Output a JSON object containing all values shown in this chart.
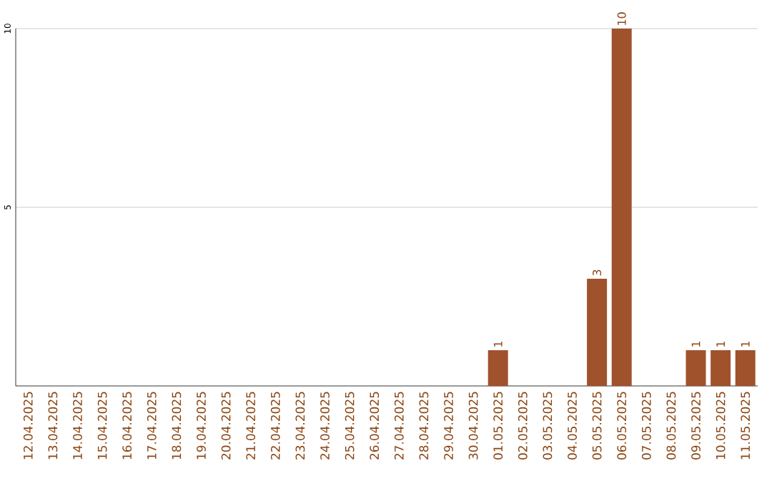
{
  "chart_data": {
    "type": "bar",
    "categories": [
      "12.04.2025",
      "13.04.2025",
      "14.04.2025",
      "15.04.2025",
      "16.04.2025",
      "17.04.2025",
      "18.04.2025",
      "19.04.2025",
      "20.04.2025",
      "21.04.2025",
      "22.04.2025",
      "23.04.2025",
      "24.04.2025",
      "25.04.2025",
      "26.04.2025",
      "27.04.2025",
      "28.04.2025",
      "29.04.2025",
      "30.04.2025",
      "01.05.2025",
      "02.05.2025",
      "03.05.2025",
      "04.05.2025",
      "05.05.2025",
      "06.05.2025",
      "07.05.2025",
      "08.05.2025",
      "09.05.2025",
      "10.05.2025",
      "11.05.2025"
    ],
    "values": [
      0,
      0,
      0,
      0,
      0,
      0,
      0,
      0,
      0,
      0,
      0,
      0,
      0,
      0,
      0,
      0,
      0,
      0,
      0,
      1,
      0,
      0,
      0,
      3,
      10,
      0,
      0,
      1,
      1,
      1
    ],
    "value_labels": [
      null,
      null,
      null,
      null,
      null,
      null,
      null,
      null,
      null,
      null,
      null,
      null,
      null,
      null,
      null,
      null,
      null,
      null,
      null,
      "1",
      null,
      null,
      null,
      "3",
      "10",
      null,
      null,
      "1",
      "1",
      "1"
    ],
    "color": "#a0522d",
    "ylim": [
      0,
      10
    ],
    "yticks": [
      5,
      10
    ],
    "grid": "y"
  }
}
